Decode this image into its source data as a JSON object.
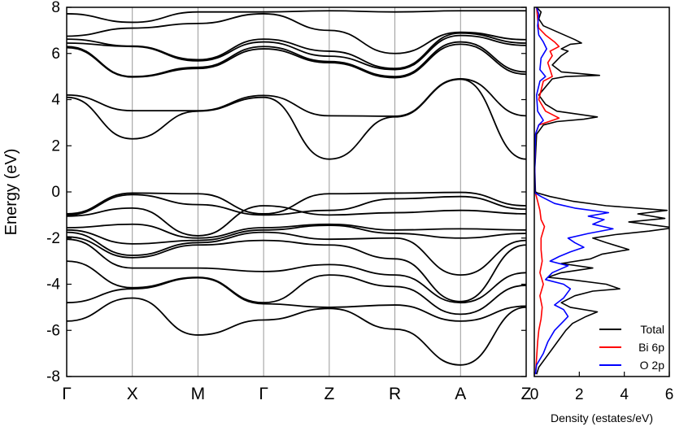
{
  "chart_data": [
    {
      "type": "line",
      "title": "",
      "ylabel": "Energy (eV)",
      "xlabel": "",
      "ylim": [
        -8,
        8
      ],
      "yticks": [
        -8,
        -6,
        -4,
        -2,
        0,
        2,
        4,
        6,
        8
      ],
      "ytick_labels": [
        "-8",
        "-6",
        "-4",
        "-2",
        "0",
        "2",
        "4",
        "6",
        "8"
      ],
      "kpath_labels": [
        "Γ",
        "X",
        "M",
        "Γ",
        "Z",
        "R",
        "A",
        "Z"
      ],
      "kpath_positions": [
        0,
        1,
        2,
        3,
        4,
        5,
        6,
        7
      ],
      "grid": "vertical lines at high-symmetry points",
      "line_color": "#000000",
      "series": [
        {
          "values": [
            7.72,
            7.35,
            7.8,
            7.8,
            7.85,
            7.8,
            7.85,
            7.85
          ]
        },
        {
          "values": [
            6.75,
            7.1,
            7.3,
            7.72,
            7.0,
            6.0,
            6.92,
            6.6
          ]
        },
        {
          "values": [
            6.62,
            6.32,
            5.73,
            6.62,
            6.1,
            5.35,
            6.88,
            6.45
          ]
        },
        {
          "values": [
            6.45,
            6.3,
            5.68,
            6.5,
            5.88,
            5.3,
            6.78,
            6.35
          ]
        },
        {
          "values": [
            6.3,
            5.0,
            5.4,
            6.3,
            5.65,
            5.0,
            6.5,
            5.2
          ]
        },
        {
          "values": [
            6.25,
            4.98,
            5.35,
            6.2,
            5.6,
            4.95,
            6.4,
            5.1
          ]
        },
        {
          "values": [
            4.2,
            3.52,
            3.52,
            4.18,
            3.3,
            3.28,
            4.9,
            3.3
          ]
        },
        {
          "values": [
            4.1,
            2.3,
            3.5,
            4.1,
            1.42,
            3.25,
            4.88,
            1.42
          ]
        },
        {
          "values": [
            -0.95,
            -0.05,
            -0.08,
            -0.95,
            -0.08,
            -0.05,
            -0.02,
            -0.6
          ]
        },
        {
          "values": [
            -1.0,
            -0.12,
            -0.55,
            -1.0,
            -0.8,
            -0.3,
            -0.2,
            -0.75
          ]
        },
        {
          "values": [
            -1.05,
            -0.7,
            -1.9,
            -0.6,
            -1.0,
            -0.9,
            -0.8,
            -0.95
          ]
        },
        {
          "values": [
            -1.55,
            -1.4,
            -2.0,
            -1.55,
            -1.4,
            -1.65,
            -1.6,
            -1.65
          ]
        },
        {
          "values": [
            -1.65,
            -2.25,
            -2.1,
            -1.65,
            -1.45,
            -1.8,
            -2.0,
            -1.8
          ]
        },
        {
          "values": [
            -1.75,
            -2.75,
            -2.2,
            -1.75,
            -2.05,
            -2.0,
            -3.6,
            -2.1
          ]
        },
        {
          "values": [
            -1.95,
            -2.85,
            -2.3,
            -2.1,
            -2.3,
            -2.9,
            -4.75,
            -2.3
          ]
        },
        {
          "values": [
            -2.05,
            -3.3,
            -3.3,
            -3.45,
            -3.15,
            -3.6,
            -4.8,
            -3.5
          ]
        },
        {
          "values": [
            -3.0,
            -4.15,
            -3.7,
            -4.8,
            -3.6,
            -4.1,
            -5.3,
            -4.05
          ]
        },
        {
          "values": [
            -4.8,
            -4.2,
            -3.72,
            -4.85,
            -5.0,
            -4.9,
            -5.6,
            -4.95
          ]
        },
        {
          "values": [
            -5.6,
            -4.6,
            -6.2,
            -5.55,
            -5.05,
            -5.95,
            -7.5,
            -5.0
          ]
        }
      ]
    },
    {
      "type": "line",
      "title": "",
      "xlabel": "Density (estates/eV)",
      "ylabel": "",
      "xlim": [
        0,
        6
      ],
      "xticks": [
        0,
        2,
        4,
        6
      ],
      "xtick_labels": [
        "0",
        "2",
        "4",
        "6"
      ],
      "ylim": [
        -8,
        8
      ],
      "legend_position": "bottom-right",
      "series": [
        {
          "name": "Total",
          "color": "#000000",
          "points": [
            [
              0.1,
              -7.9
            ],
            [
              0.2,
              -7.6
            ],
            [
              0.5,
              -7.2
            ],
            [
              0.8,
              -6.8
            ],
            [
              1.1,
              -6.4
            ],
            [
              1.4,
              -6.0
            ],
            [
              1.7,
              -5.7
            ],
            [
              2.3,
              -5.4
            ],
            [
              2.8,
              -5.2
            ],
            [
              1.6,
              -5.0
            ],
            [
              1.2,
              -4.8
            ],
            [
              1.8,
              -4.5
            ],
            [
              2.6,
              -4.3
            ],
            [
              3.8,
              -4.2
            ],
            [
              3.2,
              -4.0
            ],
            [
              1.6,
              -3.8
            ],
            [
              0.6,
              -3.7
            ],
            [
              1.2,
              -3.5
            ],
            [
              2.6,
              -3.3
            ],
            [
              1.2,
              -3.1
            ],
            [
              2.5,
              -2.9
            ],
            [
              3.0,
              -2.7
            ],
            [
              4.2,
              -2.5
            ],
            [
              3.2,
              -2.2
            ],
            [
              2.6,
              -2.0
            ],
            [
              3.6,
              -1.85
            ],
            [
              5.1,
              -1.7
            ],
            [
              6.2,
              -1.55
            ],
            [
              4.2,
              -1.3
            ],
            [
              5.8,
              -1.15
            ],
            [
              4.6,
              -0.95
            ],
            [
              5.9,
              -0.8
            ],
            [
              3.2,
              -0.6
            ],
            [
              1.7,
              -0.4
            ],
            [
              0.7,
              -0.2
            ],
            [
              0.15,
              -0.05
            ],
            [
              0.05,
              0.0
            ],
            [
              0.02,
              1.0
            ],
            [
              0.05,
              1.5
            ],
            [
              0.1,
              2.5
            ],
            [
              0.4,
              2.9
            ],
            [
              1.0,
              3.05
            ],
            [
              2.2,
              3.15
            ],
            [
              2.8,
              3.25
            ],
            [
              1.0,
              3.5
            ],
            [
              0.5,
              3.8
            ],
            [
              0.2,
              4.2
            ],
            [
              0.8,
              4.9
            ],
            [
              1.4,
              5.0
            ],
            [
              2.9,
              5.05
            ],
            [
              1.2,
              5.2
            ],
            [
              0.8,
              5.5
            ],
            [
              1.2,
              5.9
            ],
            [
              1.5,
              6.1
            ],
            [
              1.2,
              6.2
            ],
            [
              1.6,
              6.4
            ],
            [
              2.1,
              6.45
            ],
            [
              1.8,
              6.6
            ],
            [
              1.1,
              6.9
            ],
            [
              0.4,
              7.2
            ],
            [
              0.2,
              7.5
            ],
            [
              0.3,
              7.8
            ],
            [
              0.1,
              8.0
            ]
          ]
        },
        {
          "name": "Bi 6p",
          "color": "#ff0000",
          "points": [
            [
              0.05,
              -7.9
            ],
            [
              0.1,
              -7.2
            ],
            [
              0.15,
              -6.5
            ],
            [
              0.2,
              -6.0
            ],
            [
              0.3,
              -5.5
            ],
            [
              0.35,
              -5.0
            ],
            [
              0.25,
              -4.5
            ],
            [
              0.4,
              -4.0
            ],
            [
              0.25,
              -3.5
            ],
            [
              0.35,
              -3.0
            ],
            [
              0.3,
              -2.5
            ],
            [
              0.3,
              -2.0
            ],
            [
              0.45,
              -1.5
            ],
            [
              0.3,
              -1.2
            ],
            [
              0.25,
              -0.8
            ],
            [
              0.15,
              -0.4
            ],
            [
              0.05,
              -0.05
            ],
            [
              0.02,
              0.0
            ],
            [
              0.02,
              1.0
            ],
            [
              0.05,
              2.5
            ],
            [
              0.2,
              2.9
            ],
            [
              0.5,
              3.0
            ],
            [
              1.1,
              3.2
            ],
            [
              0.5,
              3.5
            ],
            [
              0.2,
              4.0
            ],
            [
              0.4,
              4.8
            ],
            [
              0.8,
              5.0
            ],
            [
              0.7,
              5.3
            ],
            [
              0.6,
              5.6
            ],
            [
              0.8,
              5.9
            ],
            [
              0.7,
              6.1
            ],
            [
              1.1,
              6.3
            ],
            [
              0.9,
              6.5
            ],
            [
              0.5,
              6.8
            ],
            [
              0.2,
              7.1
            ],
            [
              0.15,
              7.5
            ],
            [
              0.1,
              8.0
            ]
          ]
        },
        {
          "name": "O 2p",
          "color": "#0000ff",
          "points": [
            [
              0.05,
              -7.9
            ],
            [
              0.1,
              -7.5
            ],
            [
              0.4,
              -7.0
            ],
            [
              0.6,
              -6.5
            ],
            [
              0.9,
              -6.0
            ],
            [
              1.3,
              -5.6
            ],
            [
              1.5,
              -5.4
            ],
            [
              1.3,
              -5.1
            ],
            [
              0.9,
              -4.9
            ],
            [
              1.3,
              -4.6
            ],
            [
              1.6,
              -4.2
            ],
            [
              1.3,
              -4.0
            ],
            [
              0.5,
              -3.8
            ],
            [
              0.8,
              -3.5
            ],
            [
              1.5,
              -3.2
            ],
            [
              0.7,
              -3.0
            ],
            [
              1.1,
              -2.8
            ],
            [
              1.6,
              -2.6
            ],
            [
              2.2,
              -2.4
            ],
            [
              1.8,
              -2.2
            ],
            [
              1.5,
              -2.0
            ],
            [
              2.4,
              -1.8
            ],
            [
              3.5,
              -1.6
            ],
            [
              2.6,
              -1.4
            ],
            [
              3.1,
              -1.2
            ],
            [
              2.4,
              -1.05
            ],
            [
              3.3,
              -0.9
            ],
            [
              1.8,
              -0.7
            ],
            [
              0.9,
              -0.5
            ],
            [
              0.3,
              -0.2
            ],
            [
              0.05,
              -0.05
            ],
            [
              0.02,
              0.0
            ],
            [
              0.02,
              1.0
            ],
            [
              0.05,
              2.5
            ],
            [
              0.2,
              2.9
            ],
            [
              0.4,
              3.1
            ],
            [
              0.15,
              3.5
            ],
            [
              0.1,
              4.2
            ],
            [
              0.25,
              4.8
            ],
            [
              0.5,
              5.0
            ],
            [
              0.25,
              5.3
            ],
            [
              0.3,
              5.8
            ],
            [
              0.55,
              6.2
            ],
            [
              0.4,
              6.5
            ],
            [
              0.2,
              6.8
            ],
            [
              0.15,
              7.2
            ],
            [
              0.2,
              7.7
            ],
            [
              0.1,
              8.0
            ]
          ]
        }
      ]
    }
  ]
}
